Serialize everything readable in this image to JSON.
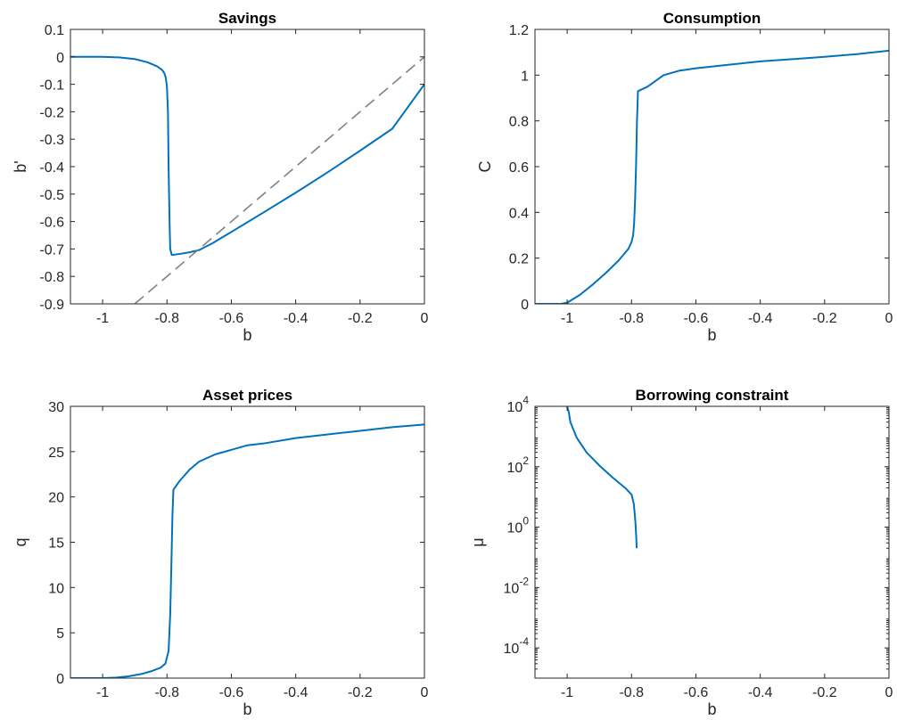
{
  "chart_data": [
    {
      "type": "line",
      "title": "Savings",
      "xlabel": "b",
      "ylabel": "b'",
      "xlim": [
        -1.1,
        0
      ],
      "ylim": [
        -0.9,
        0.1
      ],
      "xticks": [
        -1,
        -0.8,
        -0.6,
        -0.4,
        -0.2,
        0
      ],
      "xtick_labels": [
        "-1",
        "-0.8",
        "-0.6",
        "-0.4",
        "-0.2",
        "0"
      ],
      "yticks": [
        0.1,
        0,
        -0.1,
        -0.2,
        -0.3,
        -0.4,
        -0.5,
        -0.6,
        -0.7,
        -0.8,
        -0.9
      ],
      "ytick_labels": [
        "0.1",
        "0",
        "-0.1",
        "-0.2",
        "-0.3",
        "-0.4",
        "-0.5",
        "-0.6",
        "-0.7",
        "-0.8",
        "-0.9"
      ],
      "grid": false,
      "series": [
        {
          "color": "#0072bd",
          "style": "solid",
          "x": [
            -1.1,
            -1.0,
            -0.95,
            -0.9,
            -0.86,
            -0.83,
            -0.815,
            -0.808,
            -0.804,
            -0.8,
            -0.797,
            -0.795,
            -0.792,
            -0.79,
            -0.785,
            -0.76,
            -0.73,
            -0.7,
            -0.66,
            -0.6,
            -0.5,
            -0.4,
            -0.3,
            -0.2,
            -0.1,
            0
          ],
          "y": [
            0,
            0,
            -0.002,
            -0.008,
            -0.02,
            -0.035,
            -0.048,
            -0.06,
            -0.075,
            -0.11,
            -0.2,
            -0.4,
            -0.6,
            -0.7,
            -0.722,
            -0.718,
            -0.712,
            -0.704,
            -0.68,
            -0.638,
            -0.567,
            -0.495,
            -0.42,
            -0.342,
            -0.262,
            -0.1
          ]
        },
        {
          "color": "#808080",
          "style": "dashed",
          "x": [
            -0.9,
            0
          ],
          "y": [
            -0.9,
            0
          ]
        }
      ]
    },
    {
      "type": "line",
      "title": "Consumption",
      "xlabel": "b",
      "ylabel": "C",
      "xlim": [
        -1.1,
        0
      ],
      "ylim": [
        0,
        1.2
      ],
      "xticks": [
        -1,
        -0.8,
        -0.6,
        -0.4,
        -0.2,
        0
      ],
      "xtick_labels": [
        "-1",
        "-0.8",
        "-0.6",
        "-0.4",
        "-0.2",
        "0"
      ],
      "yticks": [
        0,
        0.2,
        0.4,
        0.6,
        0.8,
        1,
        1.2
      ],
      "ytick_labels": [
        "0",
        "0.2",
        "0.4",
        "0.6",
        "0.8",
        "1",
        "1.2"
      ],
      "grid": false,
      "series": [
        {
          "color": "#0072bd",
          "style": "solid",
          "x": [
            -1.1,
            -1.02,
            -1.0,
            -0.96,
            -0.92,
            -0.88,
            -0.84,
            -0.81,
            -0.8,
            -0.795,
            -0.792,
            -0.789,
            -0.786,
            -0.783,
            -0.78,
            -0.75,
            -0.72,
            -0.7,
            -0.65,
            -0.6,
            -0.5,
            -0.4,
            -0.3,
            -0.2,
            -0.1,
            0
          ],
          "y": [
            0,
            0,
            0.005,
            0.04,
            0.085,
            0.135,
            0.19,
            0.24,
            0.27,
            0.3,
            0.35,
            0.45,
            0.6,
            0.8,
            0.93,
            0.95,
            0.98,
            1.0,
            1.02,
            1.03,
            1.045,
            1.06,
            1.07,
            1.08,
            1.092,
            1.107
          ]
        }
      ]
    },
    {
      "type": "line",
      "title": "Asset prices",
      "xlabel": "b",
      "ylabel": "q",
      "xlim": [
        -1.1,
        0
      ],
      "ylim": [
        0,
        30
      ],
      "xticks": [
        -1,
        -0.8,
        -0.6,
        -0.4,
        -0.2,
        0
      ],
      "xtick_labels": [
        "-1",
        "-0.8",
        "-0.6",
        "-0.4",
        "-0.2",
        "0"
      ],
      "yticks": [
        0,
        5,
        10,
        15,
        20,
        25,
        30
      ],
      "ytick_labels": [
        "0",
        "5",
        "10",
        "15",
        "20",
        "25",
        "30"
      ],
      "grid": false,
      "series": [
        {
          "color": "#0072bd",
          "style": "solid",
          "x": [
            -1.1,
            -1.0,
            -0.96,
            -0.92,
            -0.88,
            -0.85,
            -0.82,
            -0.805,
            -0.795,
            -0.79,
            -0.786,
            -0.783,
            -0.78,
            -0.76,
            -0.73,
            -0.7,
            -0.65,
            -0.6,
            -0.55,
            -0.5,
            -0.4,
            -0.3,
            -0.2,
            -0.1,
            0
          ],
          "y": [
            0,
            0,
            0.05,
            0.2,
            0.45,
            0.75,
            1.15,
            1.6,
            3.0,
            7.0,
            13.0,
            18.0,
            20.8,
            21.8,
            23.0,
            23.9,
            24.7,
            25.2,
            25.7,
            25.9,
            26.5,
            26.9,
            27.3,
            27.7,
            28.0
          ]
        }
      ]
    },
    {
      "type": "line",
      "title": "Borrowing constraint",
      "xlabel": "b",
      "ylabel": "μ",
      "xlim": [
        -1.1,
        0
      ],
      "ylim": [
        1e-05,
        10000
      ],
      "yscale": "log",
      "xticks": [
        -1,
        -0.8,
        -0.6,
        -0.4,
        -0.2,
        0
      ],
      "xtick_labels": [
        "-1",
        "-0.8",
        "-0.6",
        "-0.4",
        "-0.2",
        "0"
      ],
      "yticks": [
        0.0001,
        0.01,
        1,
        100,
        10000
      ],
      "ytick_labels": [
        [
          "10",
          "-4"
        ],
        [
          "10",
          "-2"
        ],
        [
          "10",
          "0"
        ],
        [
          "10",
          "2"
        ],
        [
          "10",
          "4"
        ]
      ],
      "grid": false,
      "series": [
        {
          "color": "#0072bd",
          "style": "solid",
          "x": [
            -1.0,
            -0.995,
            -0.99,
            -0.97,
            -0.94,
            -0.9,
            -0.86,
            -0.82,
            -0.8,
            -0.793,
            -0.788,
            -0.785,
            -0.784
          ],
          "y": [
            10000,
            6500,
            3000,
            900,
            300,
            110,
            45,
            20,
            12,
            6,
            1.5,
            0.4,
            0.2
          ]
        }
      ]
    }
  ]
}
